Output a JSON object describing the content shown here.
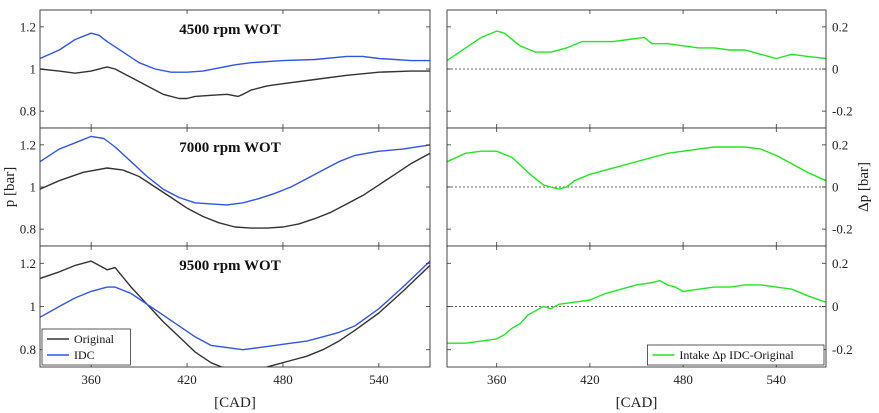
{
  "chart_data": [
    {
      "type": "line",
      "panel": "left-top",
      "title": "4500 rpm WOT",
      "ylabel": "",
      "xlabel": "",
      "xlim": [
        328,
        572
      ],
      "ylim": [
        0.72,
        1.28
      ],
      "yticks": [
        0.8,
        1,
        1.2
      ],
      "ytick_labels": [
        "0.8",
        "1",
        "1.2"
      ],
      "xticks": [
        360,
        420,
        480,
        540
      ],
      "series": [
        {
          "name": "Original",
          "color": "#333333",
          "x": [
            328,
            340,
            350,
            360,
            370,
            375,
            385,
            395,
            405,
            415,
            420,
            425,
            435,
            445,
            452,
            455,
            460,
            470,
            480,
            500,
            520,
            540,
            560,
            572
          ],
          "y": [
            1.0,
            0.99,
            0.98,
            0.99,
            1.01,
            1.0,
            0.96,
            0.92,
            0.88,
            0.86,
            0.86,
            0.87,
            0.875,
            0.88,
            0.87,
            0.88,
            0.9,
            0.92,
            0.93,
            0.95,
            0.97,
            0.985,
            0.99,
            0.99
          ]
        },
        {
          "name": "IDC",
          "color": "#2f55e8",
          "x": [
            328,
            340,
            350,
            360,
            365,
            370,
            380,
            390,
            400,
            410,
            420,
            430,
            440,
            450,
            460,
            480,
            500,
            520,
            530,
            540,
            550,
            560,
            572
          ],
          "y": [
            1.05,
            1.09,
            1.14,
            1.17,
            1.16,
            1.13,
            1.08,
            1.03,
            1.0,
            0.985,
            0.985,
            0.99,
            1.005,
            1.02,
            1.03,
            1.04,
            1.045,
            1.06,
            1.06,
            1.05,
            1.045,
            1.04,
            1.04
          ]
        }
      ]
    },
    {
      "type": "line",
      "panel": "left-middle",
      "title": "7000 rpm WOT",
      "ylabel": "p [bar]",
      "xlabel": "",
      "xlim": [
        328,
        572
      ],
      "ylim": [
        0.72,
        1.28
      ],
      "yticks": [
        0.8,
        1,
        1.2
      ],
      "ytick_labels": [
        "0.8",
        "1",
        "1.2"
      ],
      "xticks": [
        360,
        420,
        480,
        540
      ],
      "series": [
        {
          "name": "Original",
          "color": "#333333",
          "x": [
            328,
            340,
            355,
            370,
            380,
            390,
            400,
            410,
            420,
            430,
            440,
            450,
            460,
            470,
            480,
            490,
            500,
            510,
            520,
            530,
            540,
            550,
            560,
            572
          ],
          "y": [
            0.99,
            1.03,
            1.07,
            1.09,
            1.08,
            1.05,
            1.0,
            0.95,
            0.9,
            0.86,
            0.83,
            0.81,
            0.805,
            0.805,
            0.81,
            0.825,
            0.85,
            0.88,
            0.92,
            0.96,
            1.01,
            1.06,
            1.11,
            1.16
          ]
        },
        {
          "name": "IDC",
          "color": "#2f55e8",
          "x": [
            328,
            340,
            350,
            360,
            368,
            375,
            385,
            395,
            405,
            415,
            425,
            435,
            445,
            455,
            465,
            475,
            485,
            495,
            505,
            515,
            525,
            540,
            555,
            572
          ],
          "y": [
            1.12,
            1.18,
            1.21,
            1.24,
            1.23,
            1.19,
            1.12,
            1.05,
            0.99,
            0.95,
            0.925,
            0.92,
            0.915,
            0.925,
            0.945,
            0.97,
            1.0,
            1.04,
            1.08,
            1.12,
            1.15,
            1.17,
            1.18,
            1.2
          ]
        }
      ]
    },
    {
      "type": "line",
      "panel": "left-bottom",
      "title": "9500 rpm WOT",
      "ylabel": "",
      "xlabel": "[CAD]",
      "xlim": [
        328,
        572
      ],
      "ylim": [
        0.72,
        1.28
      ],
      "yticks": [
        0.8,
        1,
        1.2
      ],
      "ytick_labels": [
        "0.8",
        "1",
        "1.2"
      ],
      "xticks": [
        360,
        420,
        480,
        540
      ],
      "xtick_labels": [
        "360",
        "420",
        "480",
        "540"
      ],
      "legend": {
        "position": "bottom-left",
        "entries": [
          "Original",
          "IDC"
        ]
      },
      "series": [
        {
          "name": "Original",
          "color": "#333333",
          "x": [
            328,
            340,
            350,
            360,
            365,
            370,
            375,
            385,
            395,
            405,
            415,
            425,
            435,
            445,
            455,
            465,
            475,
            485,
            495,
            505,
            515,
            525,
            540,
            555,
            572
          ],
          "y": [
            1.13,
            1.16,
            1.19,
            1.21,
            1.19,
            1.17,
            1.18,
            1.09,
            1.01,
            0.93,
            0.86,
            0.79,
            0.74,
            0.71,
            0.7,
            0.71,
            0.73,
            0.75,
            0.77,
            0.8,
            0.84,
            0.89,
            0.97,
            1.07,
            1.19
          ]
        },
        {
          "name": "IDC",
          "color": "#2f55e8",
          "x": [
            328,
            340,
            350,
            360,
            370,
            375,
            385,
            395,
            405,
            415,
            425,
            435,
            445,
            455,
            465,
            475,
            485,
            495,
            505,
            515,
            525,
            540,
            555,
            572
          ],
          "y": [
            0.95,
            1.0,
            1.04,
            1.07,
            1.09,
            1.09,
            1.06,
            1.01,
            0.96,
            0.91,
            0.86,
            0.82,
            0.81,
            0.8,
            0.81,
            0.82,
            0.83,
            0.84,
            0.86,
            0.88,
            0.91,
            0.99,
            1.09,
            1.21
          ]
        }
      ]
    },
    {
      "type": "line",
      "panel": "right-top",
      "title": "",
      "ylabel": "",
      "xlabel": "",
      "xlim": [
        328,
        572
      ],
      "ylim": [
        -0.28,
        0.28
      ],
      "yticks": [
        -0.2,
        0,
        0.2
      ],
      "ytick_labels": [
        "-0.2",
        "0",
        "0.2"
      ],
      "xticks": [
        360,
        420,
        480,
        540
      ],
      "reference_line": 0,
      "series": [
        {
          "name": "Intake Δp IDC-Original",
          "color": "#22e622",
          "x": [
            328,
            340,
            350,
            360,
            365,
            375,
            385,
            395,
            405,
            415,
            425,
            435,
            445,
            455,
            460,
            470,
            480,
            490,
            500,
            510,
            520,
            530,
            540,
            550,
            560,
            572
          ],
          "y": [
            0.04,
            0.1,
            0.15,
            0.18,
            0.17,
            0.11,
            0.08,
            0.08,
            0.1,
            0.13,
            0.13,
            0.13,
            0.14,
            0.15,
            0.12,
            0.12,
            0.11,
            0.1,
            0.1,
            0.09,
            0.09,
            0.07,
            0.05,
            0.07,
            0.06,
            0.05
          ]
        }
      ]
    },
    {
      "type": "line",
      "panel": "right-middle",
      "title": "",
      "ylabel": "Δp [bar]",
      "xlabel": "",
      "xlim": [
        328,
        572
      ],
      "ylim": [
        -0.28,
        0.28
      ],
      "yticks": [
        -0.2,
        0,
        0.2
      ],
      "ytick_labels": [
        "-0.2",
        "0",
        "0.2"
      ],
      "xticks": [
        360,
        420,
        480,
        540
      ],
      "reference_line": 0,
      "series": [
        {
          "name": "Intake Δp IDC-Original",
          "color": "#22e622",
          "x": [
            328,
            340,
            350,
            360,
            370,
            380,
            390,
            395,
            400,
            405,
            410,
            420,
            430,
            440,
            450,
            460,
            470,
            480,
            490,
            500,
            510,
            520,
            530,
            540,
            550,
            560,
            572
          ],
          "y": [
            0.12,
            0.16,
            0.17,
            0.17,
            0.14,
            0.07,
            0.01,
            0.0,
            -0.01,
            0.0,
            0.03,
            0.06,
            0.08,
            0.1,
            0.12,
            0.14,
            0.16,
            0.17,
            0.18,
            0.19,
            0.19,
            0.19,
            0.18,
            0.15,
            0.11,
            0.07,
            0.03
          ]
        }
      ]
    },
    {
      "type": "line",
      "panel": "right-bottom",
      "title": "",
      "ylabel": "",
      "xlabel": "[CAD]",
      "xlim": [
        328,
        572
      ],
      "ylim": [
        -0.28,
        0.28
      ],
      "yticks": [
        -0.2,
        0,
        0.2
      ],
      "ytick_labels": [
        "-0.2",
        "0",
        "0.2"
      ],
      "xticks": [
        360,
        420,
        480,
        540
      ],
      "xtick_labels": [
        "360",
        "420",
        "480",
        "540"
      ],
      "reference_line": 0,
      "legend": {
        "position": "bottom-right",
        "entries": [
          "Intake Δp IDC-Original"
        ]
      },
      "series": [
        {
          "name": "Intake Δp IDC-Original",
          "color": "#22e622",
          "x": [
            328,
            340,
            350,
            360,
            365,
            370,
            375,
            380,
            385,
            390,
            395,
            400,
            410,
            420,
            430,
            440,
            450,
            460,
            465,
            470,
            475,
            480,
            490,
            500,
            510,
            520,
            530,
            540,
            550,
            560,
            572
          ],
          "y": [
            -0.17,
            -0.17,
            -0.16,
            -0.15,
            -0.13,
            -0.1,
            -0.08,
            -0.04,
            -0.02,
            0.0,
            -0.01,
            0.01,
            0.02,
            0.03,
            0.06,
            0.08,
            0.1,
            0.11,
            0.12,
            0.1,
            0.09,
            0.07,
            0.08,
            0.09,
            0.09,
            0.1,
            0.1,
            0.09,
            0.08,
            0.05,
            0.02
          ]
        }
      ]
    }
  ]
}
